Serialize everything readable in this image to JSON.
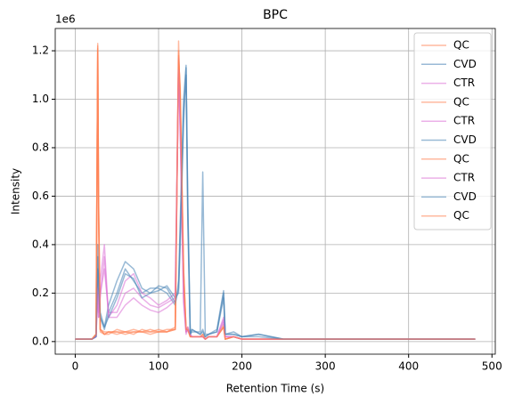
{
  "chart_data": {
    "type": "line",
    "title": "BPC",
    "xlabel": "Retention Time (s)",
    "ylabel": "Intensity",
    "y_offset_label": "1e6",
    "x": [
      0,
      20,
      25,
      27,
      28,
      30,
      35,
      40,
      50,
      60,
      70,
      80,
      90,
      100,
      110,
      120,
      124,
      126,
      130,
      133,
      135,
      138,
      140,
      150,
      153,
      156,
      160,
      170,
      178,
      180,
      190,
      200,
      220,
      250,
      300,
      350,
      400,
      480
    ],
    "xlim": [
      -24,
      504
    ],
    "xticks": [
      0,
      100,
      200,
      300,
      400,
      500
    ],
    "ylim": [
      -0.052,
      1.292
    ],
    "yticks": [
      {
        "value": 0,
        "label": "0.0"
      },
      0.2,
      0.4,
      0.6,
      0.8,
      {
        "value": 1,
        "label": "1.0"
      },
      1.2
    ],
    "grid": true,
    "legend": "upper right",
    "alpha": 0.55,
    "series": [
      {
        "name": "QC",
        "color": "#ff7f50",
        "values": [
          0.01,
          0.01,
          0.03,
          1.23,
          0.6,
          0.05,
          0.03,
          0.04,
          0.04,
          0.03,
          0.04,
          0.04,
          0.04,
          0.04,
          0.04,
          0.05,
          1.2,
          1.0,
          0.3,
          0.05,
          0.06,
          0.02,
          0.02,
          0.02,
          0.03,
          0.01,
          0.02,
          0.02,
          0.06,
          0.01,
          0.02,
          0.01,
          0.01,
          0.01,
          0.01,
          0.01,
          0.01,
          0.01
        ]
      },
      {
        "name": "CVD",
        "color": "#4682b4",
        "values": [
          0.01,
          0.01,
          0.02,
          0.4,
          0.25,
          0.1,
          0.05,
          0.12,
          0.2,
          0.3,
          0.25,
          0.2,
          0.22,
          0.22,
          0.2,
          0.15,
          0.25,
          0.5,
          1.0,
          1.14,
          0.6,
          0.03,
          0.05,
          0.03,
          0.05,
          0.02,
          0.03,
          0.04,
          0.2,
          0.03,
          0.03,
          0.02,
          0.03,
          0.01,
          0.01,
          0.01,
          0.01,
          0.01
        ]
      },
      {
        "name": "CTR",
        "color": "#da70d6",
        "values": [
          0.01,
          0.01,
          0.02,
          0.2,
          0.1,
          0.25,
          0.4,
          0.1,
          0.15,
          0.25,
          0.28,
          0.2,
          0.18,
          0.15,
          0.17,
          0.2,
          1.17,
          0.9,
          0.2,
          0.04,
          0.05,
          0.03,
          0.02,
          0.02,
          0.02,
          0.01,
          0.02,
          0.02,
          0.1,
          0.02,
          0.02,
          0.01,
          0.01,
          0.01,
          0.01,
          0.01,
          0.01,
          0.01
        ]
      },
      {
        "name": "QC",
        "color": "#ff7f50",
        "values": [
          0.01,
          0.01,
          0.03,
          1.2,
          0.5,
          0.04,
          0.03,
          0.03,
          0.05,
          0.04,
          0.03,
          0.05,
          0.04,
          0.05,
          0.04,
          0.06,
          1.16,
          1.05,
          0.25,
          0.04,
          0.05,
          0.02,
          0.02,
          0.02,
          0.02,
          0.01,
          0.02,
          0.02,
          0.07,
          0.01,
          0.02,
          0.01,
          0.01,
          0.01,
          0.01,
          0.01,
          0.01,
          0.01
        ]
      },
      {
        "name": "CTR",
        "color": "#da70d6",
        "values": [
          0.01,
          0.01,
          0.02,
          0.25,
          0.12,
          0.2,
          0.3,
          0.12,
          0.12,
          0.2,
          0.22,
          0.18,
          0.15,
          0.14,
          0.16,
          0.18,
          1.1,
          0.85,
          0.18,
          0.04,
          0.06,
          0.03,
          0.02,
          0.02,
          0.02,
          0.01,
          0.02,
          0.02,
          0.08,
          0.02,
          0.02,
          0.01,
          0.01,
          0.01,
          0.01,
          0.01,
          0.01,
          0.01
        ]
      },
      {
        "name": "CVD",
        "color": "#4682b4",
        "values": [
          0.01,
          0.01,
          0.02,
          0.3,
          0.28,
          0.12,
          0.06,
          0.15,
          0.25,
          0.33,
          0.3,
          0.22,
          0.2,
          0.21,
          0.23,
          0.18,
          0.2,
          0.4,
          0.9,
          1.13,
          0.5,
          0.03,
          0.04,
          0.04,
          0.7,
          0.03,
          0.03,
          0.05,
          0.21,
          0.03,
          0.04,
          0.02,
          0.03,
          0.01,
          0.01,
          0.01,
          0.01,
          0.01
        ]
      },
      {
        "name": "QC",
        "color": "#ff7f50",
        "values": [
          0.01,
          0.01,
          0.03,
          1.22,
          0.55,
          0.05,
          0.04,
          0.04,
          0.04,
          0.04,
          0.05,
          0.04,
          0.03,
          0.04,
          0.05,
          0.05,
          1.24,
          0.95,
          0.28,
          0.05,
          0.05,
          0.02,
          0.02,
          0.02,
          0.03,
          0.01,
          0.02,
          0.02,
          0.06,
          0.01,
          0.02,
          0.01,
          0.01,
          0.01,
          0.01,
          0.01,
          0.01,
          0.01
        ]
      },
      {
        "name": "CTR",
        "color": "#da70d6",
        "values": [
          0.01,
          0.01,
          0.02,
          0.22,
          0.1,
          0.18,
          0.35,
          0.1,
          0.1,
          0.15,
          0.18,
          0.15,
          0.13,
          0.12,
          0.14,
          0.17,
          1.12,
          0.88,
          0.16,
          0.03,
          0.05,
          0.03,
          0.02,
          0.02,
          0.02,
          0.01,
          0.02,
          0.02,
          0.09,
          0.02,
          0.02,
          0.01,
          0.01,
          0.01,
          0.01,
          0.01,
          0.01,
          0.01
        ]
      },
      {
        "name": "CVD",
        "color": "#4682b4",
        "values": [
          0.01,
          0.01,
          0.02,
          0.35,
          0.22,
          0.1,
          0.06,
          0.1,
          0.18,
          0.28,
          0.26,
          0.18,
          0.2,
          0.23,
          0.22,
          0.16,
          0.22,
          0.45,
          0.95,
          1.1,
          0.55,
          0.03,
          0.05,
          0.03,
          0.04,
          0.02,
          0.03,
          0.04,
          0.18,
          0.03,
          0.03,
          0.02,
          0.02,
          0.01,
          0.01,
          0.01,
          0.01,
          0.01
        ]
      },
      {
        "name": "QC",
        "color": "#ff7f50",
        "values": [
          0.01,
          0.01,
          0.03,
          1.21,
          0.58,
          0.05,
          0.03,
          0.04,
          0.03,
          0.04,
          0.04,
          0.04,
          0.05,
          0.04,
          0.04,
          0.05,
          1.18,
          1.02,
          0.3,
          0.05,
          0.05,
          0.02,
          0.02,
          0.02,
          0.02,
          0.01,
          0.02,
          0.02,
          0.06,
          0.01,
          0.02,
          0.01,
          0.01,
          0.01,
          0.01,
          0.01,
          0.01,
          0.01
        ]
      }
    ]
  }
}
